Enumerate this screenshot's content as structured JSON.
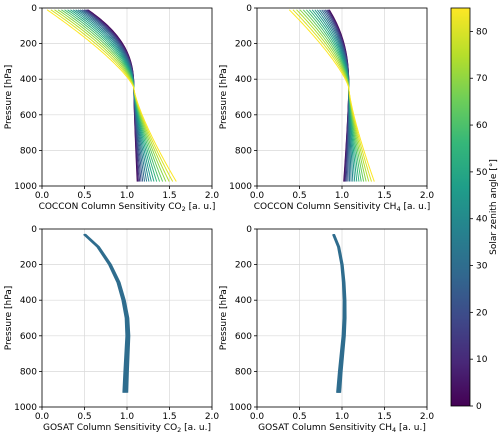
{
  "chart_data": [
    {
      "type": "line",
      "panel": "coccon-co2",
      "xlabel": "COCCON Column Sensitivity CO",
      "xlabel_sub": "2",
      "xlabel_tail": " [a. u.]",
      "ylabel": "Pressure [hPa]",
      "xlim": [
        0.0,
        2.0
      ],
      "ylim": [
        1000,
        0
      ],
      "xticks": [
        "0.0",
        "0.5",
        "1.0",
        "1.5",
        "2.0"
      ],
      "yticks": [
        "0",
        "200",
        "400",
        "600",
        "800",
        "1000"
      ],
      "grid": true,
      "shape": {
        "kind": "coccon",
        "top_x": [
          0.54,
          0.06
        ],
        "bottom_x": [
          1.12,
          1.58
        ],
        "cross_p": 450,
        "p_top": 10,
        "p_bottom": 975
      },
      "series": [
        {
          "sza": 0,
          "x_top": 0.54,
          "x_bottom": 1.12
        },
        {
          "sza": 20,
          "x_top": 0.51,
          "x_bottom": 1.14
        },
        {
          "sza": 40,
          "x_top": 0.42,
          "x_bottom": 1.2
        },
        {
          "sza": 60,
          "x_top": 0.26,
          "x_bottom": 1.32
        },
        {
          "sza": 80,
          "x_top": 0.06,
          "x_bottom": 1.58
        }
      ]
    },
    {
      "type": "line",
      "panel": "coccon-ch4",
      "xlabel": "COCCON Column Sensitivity CH",
      "xlabel_sub": "4",
      "xlabel_tail": " [a. u.]",
      "ylabel": "Pressure [hPa]",
      "xlim": [
        0.0,
        2.0
      ],
      "ylim": [
        1000,
        0
      ],
      "xticks": [
        "0.0",
        "0.5",
        "1.0",
        "1.5",
        "2.0"
      ],
      "yticks": [
        "0",
        "200",
        "400",
        "600",
        "800",
        "1000"
      ],
      "grid": true,
      "shape": {
        "kind": "coccon",
        "top_x": [
          0.85,
          0.38
        ],
        "bottom_x": [
          1.02,
          1.38
        ],
        "cross_p": 450,
        "p_top": 10,
        "p_bottom": 975
      },
      "series": [
        {
          "sza": 0,
          "x_top": 0.85,
          "x_bottom": 1.02
        },
        {
          "sza": 20,
          "x_top": 0.82,
          "x_bottom": 1.04
        },
        {
          "sza": 40,
          "x_top": 0.75,
          "x_bottom": 1.1
        },
        {
          "sza": 60,
          "x_top": 0.6,
          "x_bottom": 1.2
        },
        {
          "sza": 80,
          "x_top": 0.38,
          "x_bottom": 1.38
        }
      ]
    },
    {
      "type": "line",
      "panel": "gosat-co2",
      "xlabel": "GOSAT Column Sensitivity CO",
      "xlabel_sub": "2",
      "xlabel_tail": " [a. u.]",
      "ylabel": "Pressure [hPa]",
      "xlim": [
        0.0,
        2.0
      ],
      "ylim": [
        1000,
        0
      ],
      "xticks": [
        "0.0",
        "0.5",
        "1.0",
        "1.5",
        "2.0"
      ],
      "yticks": [
        "0",
        "200",
        "400",
        "600",
        "800",
        "1000"
      ],
      "grid": true,
      "shape": {
        "kind": "gosat",
        "pressure": [
          30,
          100,
          200,
          300,
          400,
          500,
          600,
          700,
          800,
          920
        ],
        "x": [
          0.5,
          0.66,
          0.8,
          0.9,
          0.96,
          1.0,
          1.01,
          1.0,
          0.99,
          0.98
        ],
        "spread": 0.025
      },
      "series": [
        {
          "sza": 30,
          "note": "profile band"
        }
      ]
    },
    {
      "type": "line",
      "panel": "gosat-ch4",
      "xlabel": "GOSAT Column Sensitivity CH",
      "xlabel_sub": "4",
      "xlabel_tail": " [a. u.]",
      "ylabel": "Pressure [hPa]",
      "xlim": [
        0.0,
        2.0
      ],
      "ylim": [
        1000,
        0
      ],
      "xticks": [
        "0.0",
        "0.5",
        "1.0",
        "1.5",
        "2.0"
      ],
      "yticks": [
        "0",
        "200",
        "400",
        "600",
        "800",
        "1000"
      ],
      "grid": true,
      "shape": {
        "kind": "gosat",
        "pressure": [
          30,
          100,
          200,
          300,
          400,
          500,
          600,
          700,
          800,
          920
        ],
        "x": [
          0.9,
          0.96,
          1.0,
          1.02,
          1.03,
          1.03,
          1.02,
          1.0,
          0.98,
          0.96
        ],
        "spread": 0.02
      },
      "series": [
        {
          "sza": 30,
          "note": "profile band"
        }
      ]
    }
  ],
  "colorbar": {
    "label": "Solar zenith angle [°]",
    "min": 0,
    "max": 85,
    "ticks": [
      "0",
      "10",
      "20",
      "30",
      "40",
      "50",
      "60",
      "70",
      "80"
    ],
    "colormap": "viridis",
    "stops": [
      "#440154",
      "#482878",
      "#3e4989",
      "#31688e",
      "#26828e",
      "#1f9e89",
      "#35b779",
      "#6ece58",
      "#b5de2b",
      "#fde725"
    ]
  }
}
